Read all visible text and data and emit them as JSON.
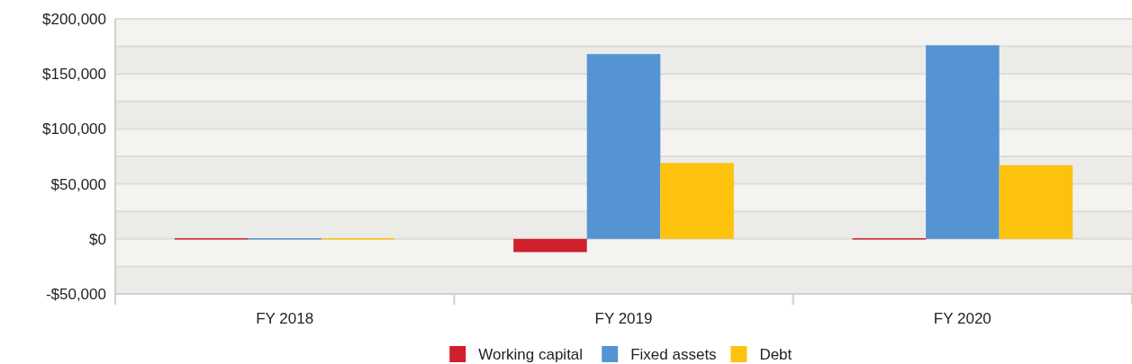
{
  "chart_data": {
    "type": "bar",
    "categories": [
      "FY 2018",
      "FY 2019",
      "FY 2020"
    ],
    "series": [
      {
        "name": "Working capital",
        "color": "#d0202e",
        "values": [
          0,
          -12000,
          0
        ]
      },
      {
        "name": "Fixed assets",
        "color": "#5594d3",
        "values": [
          0,
          168000,
          176000
        ]
      },
      {
        "name": "Debt",
        "color": "#fdc20e",
        "values": [
          0,
          69000,
          67000
        ]
      }
    ],
    "ylim": [
      -50000,
      200000
    ],
    "yticks": [
      {
        "value": -50000,
        "label": "-$50,000"
      },
      {
        "value": -25000,
        "label": null
      },
      {
        "value": 0,
        "label": "$0"
      },
      {
        "value": 25000,
        "label": null
      },
      {
        "value": 50000,
        "label": "$50,000"
      },
      {
        "value": 75000,
        "label": null
      },
      {
        "value": 100000,
        "label": "$100,000"
      },
      {
        "value": 125000,
        "label": null
      },
      {
        "value": 150000,
        "label": "$150,000"
      },
      {
        "value": 175000,
        "label": null
      },
      {
        "value": 200000,
        "label": "$200,000"
      }
    ],
    "grid": true,
    "legend": "bottom"
  }
}
